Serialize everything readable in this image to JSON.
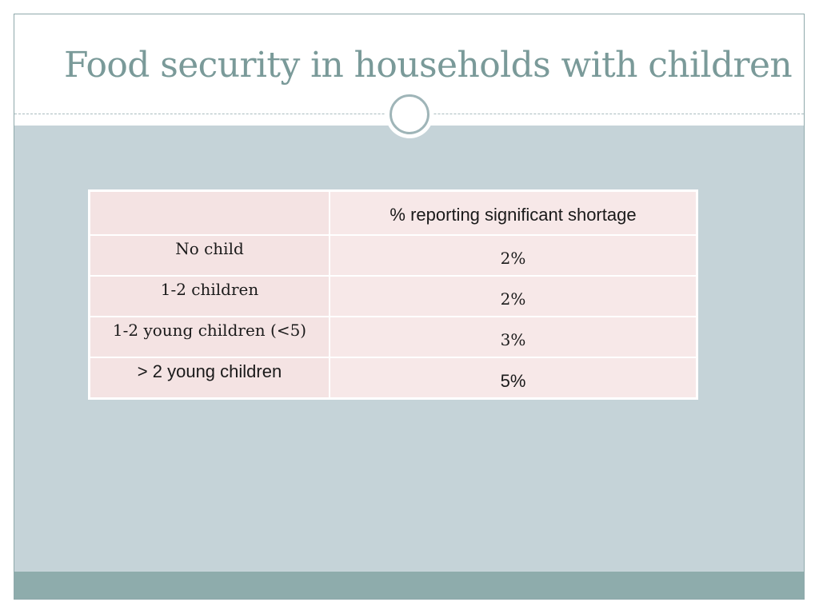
{
  "slide": {
    "title": "Food security in households with children"
  },
  "table": {
    "header": {
      "label": "",
      "value": "% reporting significant shortage"
    },
    "rows": [
      {
        "label": "No child",
        "value": "2%"
      },
      {
        "label": "1-2 children",
        "value": "2%"
      },
      {
        "label": "1-2 young children (<5)",
        "value": "3%"
      },
      {
        "label": "> 2 young children",
        "value": "5%"
      }
    ]
  },
  "colors": {
    "title": "#7a9a99",
    "content_background": "#c5d3d8",
    "table_fill": "#f5e4e4",
    "footer": "#8eacac"
  }
}
